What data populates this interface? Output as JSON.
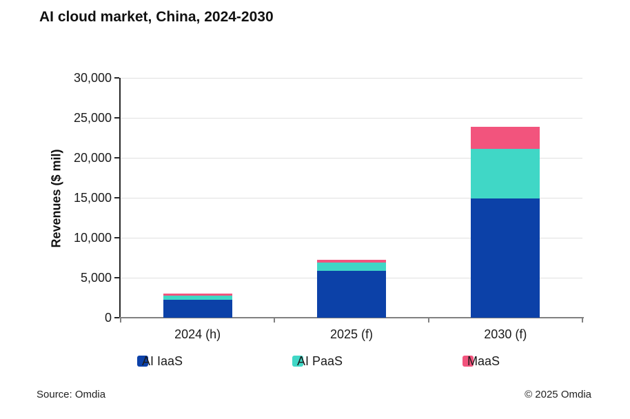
{
  "page": {
    "footer": {
      "source": "Source: Omdia",
      "copyright": "© 2025 Omdia"
    }
  },
  "chart_data": {
    "type": "bar",
    "stacked": true,
    "title": "AI cloud market, China, 2024-2030",
    "ylabel": "Revenues ($ mil)",
    "xlabel": "",
    "categories": [
      "2024 (h)",
      "2025 (f)",
      "2030 (f)"
    ],
    "series": [
      {
        "name": "AI IaaS",
        "color": "#0c41a8",
        "values": [
          2250,
          5900,
          14900
        ]
      },
      {
        "name": "AI PaaS",
        "color": "#40d7c6",
        "values": [
          500,
          1000,
          6200
        ]
      },
      {
        "name": "MaaS",
        "color": "#f2547d",
        "values": [
          250,
          350,
          2800
        ]
      }
    ],
    "totals": [
      3000,
      7250,
      23900
    ],
    "ylim": [
      0,
      30000
    ],
    "yticks": [
      0,
      5000,
      10000,
      15000,
      20000,
      25000,
      30000
    ],
    "ytick_labels": [
      "0",
      "5,000",
      "10,000",
      "15,000",
      "20,000",
      "25,000",
      "30,000"
    ],
    "grid": "horizontal-light-gray",
    "legend_position": "bottom",
    "colors": {
      "grid": "#e0e0e0",
      "y_axis": "#262626",
      "x_axis": "#808080",
      "text": "#1a1a1a"
    }
  }
}
